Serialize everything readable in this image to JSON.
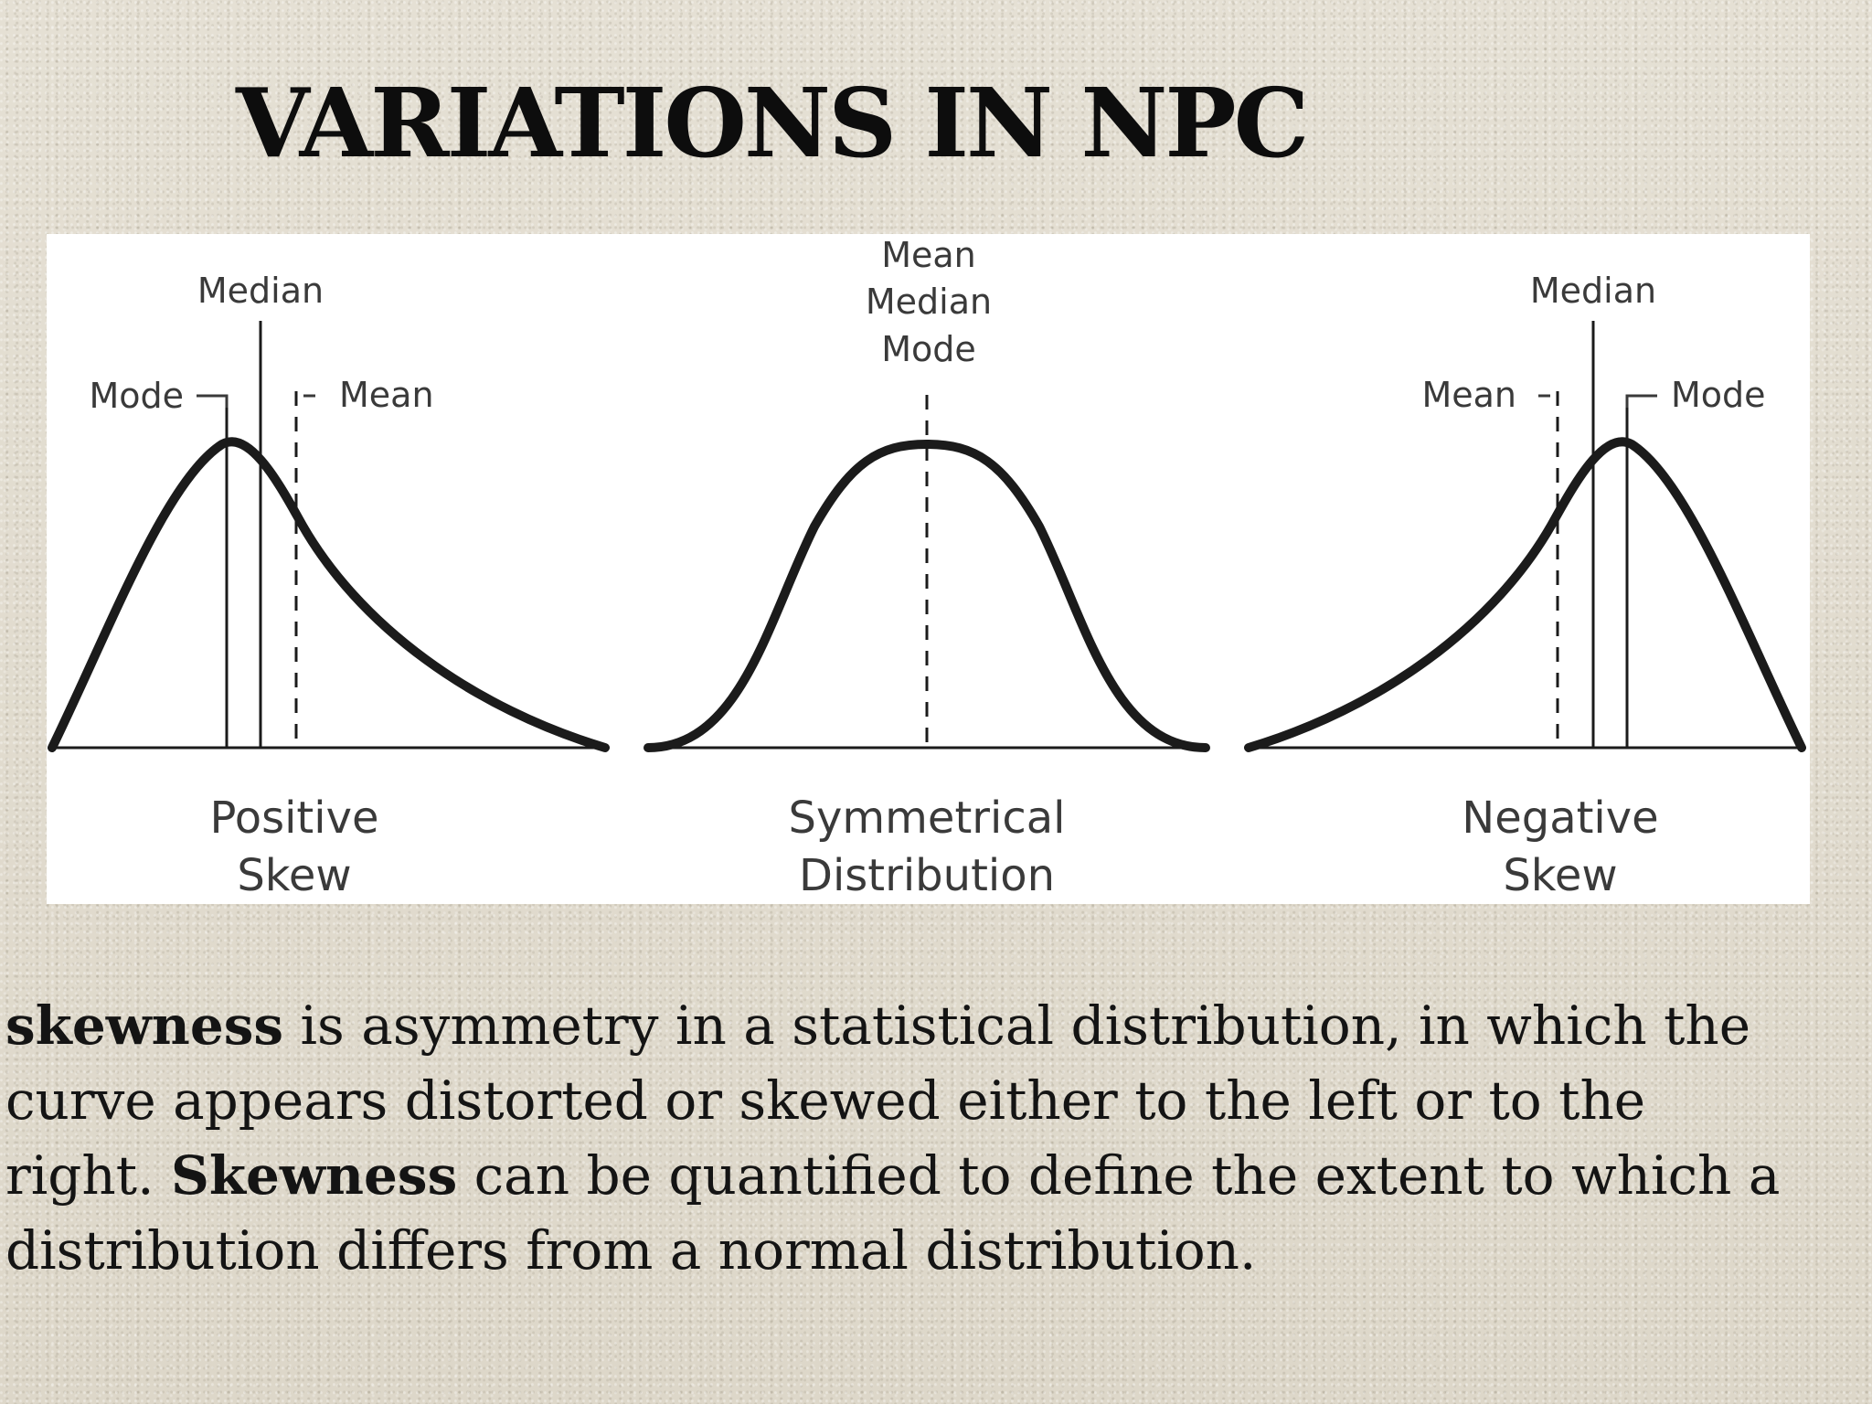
{
  "title": "VARIATIONS IN NPC",
  "diagram": {
    "positive": {
      "labels": {
        "median": "Median",
        "mode": "Mode",
        "mean": "Mean"
      },
      "caption_line1": "Positive",
      "caption_line2": "Skew"
    },
    "symmetrical": {
      "labels": {
        "mean": "Mean",
        "median": "Median",
        "mode": "Mode"
      },
      "caption_line1": "Symmetrical",
      "caption_line2": "Distribution"
    },
    "negative": {
      "labels": {
        "median": "Median",
        "mean": "Mean",
        "mode": "Mode"
      },
      "caption_line1": "Negative",
      "caption_line2": "Skew"
    }
  },
  "description": {
    "term1": "skewness",
    "text1": " is asymmetry in a statistical distribution, in which the curve appears distorted or skewed either to the left or to the right. ",
    "term2": "Skewness",
    "text2": " can be quantified to define the extent to which a distribution differs from a normal distribution."
  }
}
